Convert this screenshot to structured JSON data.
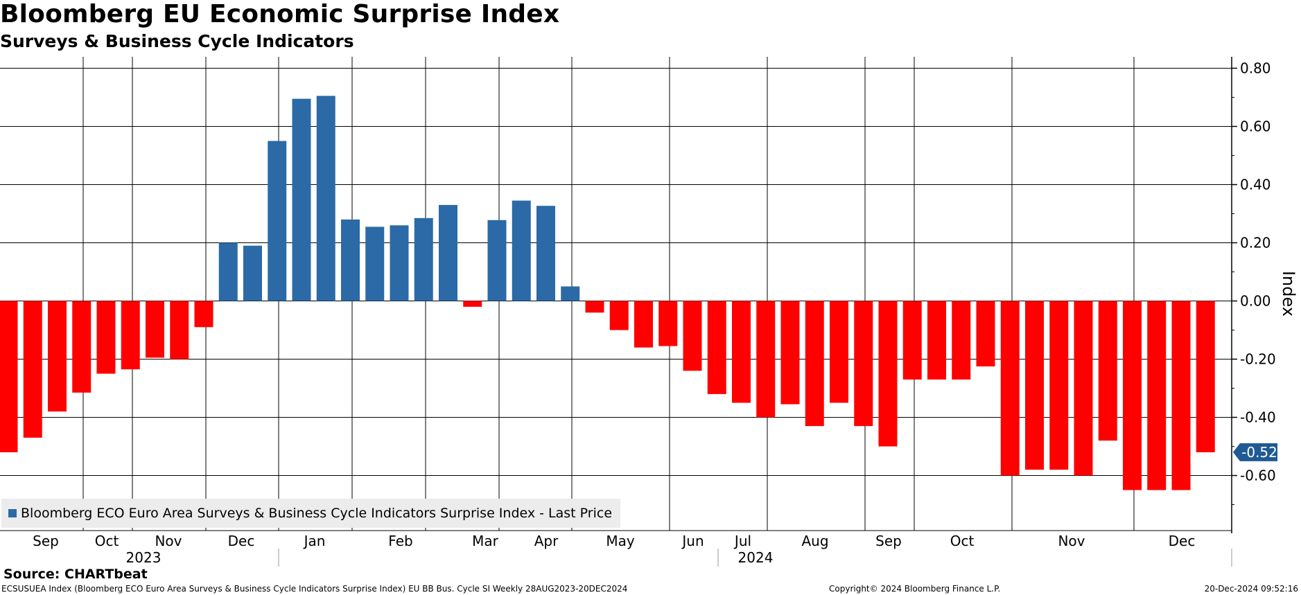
{
  "title": "Bloomberg EU Economic Surprise Index",
  "subtitle": "Surveys & Business Cycle Indicators",
  "source": "Source: CHARTbeat",
  "footer": {
    "left": "ECSUSUEA Index (Bloomberg ECO Euro Area Surveys & Business Cycle Indicators Surprise Index) EU BB Bus. Cycle SI  Weekly 28AUG2023-20DEC2024",
    "center": "Copyright© 2024 Bloomberg Finance L.P.",
    "right": "20-Dec-2024 09:52:16"
  },
  "legend": {
    "label": "Bloomberg ECO Euro Area Surveys & Business Cycle Indicators Surprise Index - Last Price"
  },
  "last_value_label": "-0.52",
  "colors": {
    "positive": "#2b6aa6",
    "negative": "#ff0000",
    "last_label_bg": "#1f5a94",
    "grid": "#000000"
  },
  "chart_data": {
    "type": "bar",
    "title": "Bloomberg EU Economic Surprise Index",
    "subtitle": "Surveys & Business Cycle Indicators",
    "ylabel": "Index",
    "xlabel": "",
    "ylim": [
      -0.79,
      0.84
    ],
    "yticks": [
      0.8,
      0.6,
      0.4,
      0.2,
      0.0,
      -0.2,
      -0.4,
      -0.6
    ],
    "ytick_labels": [
      "0.80",
      "0.60",
      "0.40",
      "0.20",
      "0.00",
      "-0.20",
      "-0.40",
      "-0.60"
    ],
    "grid": true,
    "legend_position": "bottom-left",
    "frequency": "weekly",
    "period": "28AUG2023-20DEC2024",
    "month_labels": [
      "Sep",
      "Oct",
      "Nov",
      "Dec",
      "Jan",
      "Feb",
      "Mar",
      "Apr",
      "May",
      "Jun",
      "Jul",
      "Aug",
      "Sep",
      "Oct",
      "Nov",
      "Dec"
    ],
    "year_labels": [
      "2023",
      "2024"
    ],
    "series": [
      {
        "name": "Bloomberg ECO Euro Area Surveys & Business Cycle Indicators Surprise Index - Last Price",
        "values": [
          -0.52,
          -0.47,
          -0.38,
          -0.315,
          -0.25,
          -0.235,
          -0.195,
          -0.2,
          -0.09,
          0.2,
          0.19,
          0.55,
          0.695,
          0.705,
          0.28,
          0.255,
          0.26,
          0.285,
          0.33,
          -0.02,
          0.278,
          0.345,
          0.327,
          0.05,
          -0.04,
          -0.1,
          -0.16,
          -0.155,
          -0.24,
          -0.32,
          -0.35,
          -0.4,
          -0.355,
          -0.43,
          -0.35,
          -0.43,
          -0.5,
          -0.27,
          -0.27,
          -0.27,
          -0.225,
          -0.6,
          -0.58,
          -0.58,
          -0.6,
          -0.48,
          -0.65,
          -0.65,
          -0.65,
          -0.52
        ]
      }
    ],
    "last_value": -0.52
  }
}
